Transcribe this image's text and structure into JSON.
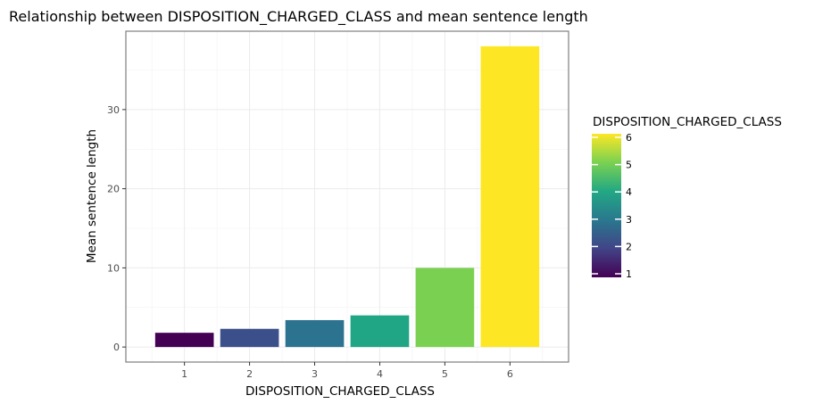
{
  "chart_data": {
    "type": "bar",
    "title": "Relationship between DISPOSITION_CHARGED_CLASS and mean sentence length",
    "xlabel": "DISPOSITION_CHARGED_CLASS",
    "ylabel": "Mean sentence length",
    "categories": [
      "1",
      "2",
      "3",
      "4",
      "5",
      "6"
    ],
    "values": [
      1.8,
      2.3,
      3.4,
      4.0,
      10.0,
      38.0
    ],
    "ylim": [
      -1.9,
      39.9
    ],
    "yticks": [
      0,
      10,
      20,
      30
    ],
    "grid": true,
    "legend": {
      "title": "DISPOSITION_CHARGED_CLASS",
      "type": "colorbar",
      "placement": "right",
      "range": [
        1,
        6
      ],
      "ticks": [
        "1",
        "2",
        "3",
        "4",
        "5",
        "6"
      ]
    },
    "colors": [
      "#440154",
      "#3b4f8a",
      "#2c7390",
      "#21a685",
      "#7ad151",
      "#fde725"
    ],
    "gradient_stops": [
      "#440154",
      "#414487",
      "#2a788e",
      "#22a884",
      "#7ad151",
      "#fde725"
    ]
  }
}
